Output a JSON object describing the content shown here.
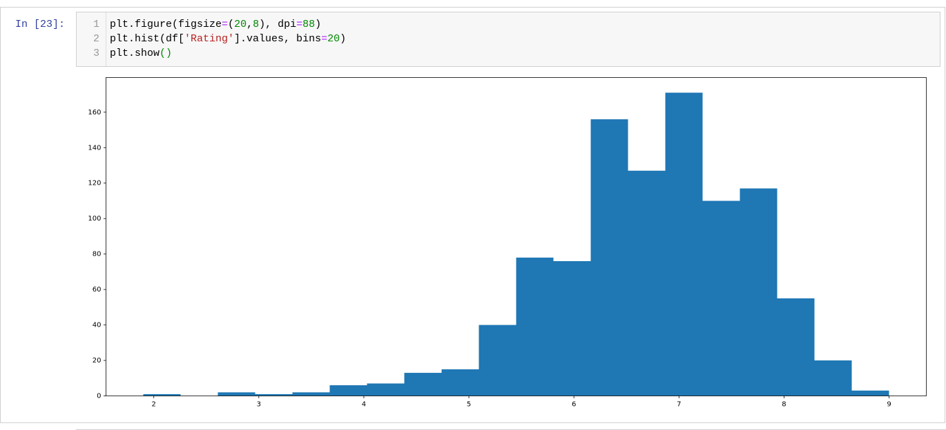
{
  "cell": {
    "prompt": "In [23]:",
    "code": [
      {
        "number": 1,
        "tokens": [
          {
            "text": "plt.figure(figsize",
            "color": "#000000"
          },
          {
            "text": "=",
            "color": "#aa22ff"
          },
          {
            "text": "(",
            "color": "#000000"
          },
          {
            "text": "20",
            "color": "#008800"
          },
          {
            "text": ",",
            "color": "#000000"
          },
          {
            "text": "8",
            "color": "#008800"
          },
          {
            "text": "), dpi",
            "color": "#000000"
          },
          {
            "text": "=",
            "color": "#aa22ff"
          },
          {
            "text": "88",
            "color": "#008800"
          },
          {
            "text": ")",
            "color": "#000000"
          }
        ]
      },
      {
        "number": 2,
        "tokens": [
          {
            "text": "plt.hist(df[",
            "color": "#000000"
          },
          {
            "text": "'Rating'",
            "color": "#ba2121"
          },
          {
            "text": "].values, bins",
            "color": "#000000"
          },
          {
            "text": "=",
            "color": "#aa22ff"
          },
          {
            "text": "20",
            "color": "#008800"
          },
          {
            "text": ")",
            "color": "#000000"
          }
        ]
      },
      {
        "number": 3,
        "tokens": [
          {
            "text": "plt.show",
            "color": "#000000"
          },
          {
            "text": "()",
            "color": "#008800"
          }
        ]
      }
    ]
  },
  "chart_data": {
    "type": "histogram",
    "color": "#1f77b4",
    "bins": [
      1.9,
      2.255,
      2.61,
      2.965,
      3.32,
      3.675,
      4.03,
      4.385,
      4.74,
      5.095,
      5.45,
      5.805,
      6.16,
      6.515,
      6.87,
      7.225,
      7.58,
      7.935,
      8.29,
      8.645,
      9.0
    ],
    "values": [
      1,
      0,
      2,
      1,
      2,
      6,
      7,
      13,
      15,
      40,
      78,
      76,
      156,
      127,
      171,
      110,
      117,
      55,
      20,
      3
    ],
    "xlim": [
      1.545,
      9.355
    ],
    "xticks": [
      2,
      3,
      4,
      5,
      6,
      7,
      8,
      9
    ],
    "ylim": [
      0,
      179.55
    ],
    "yticks": [
      0,
      20,
      40,
      60,
      80,
      100,
      120,
      140,
      160
    ],
    "grid": false
  }
}
